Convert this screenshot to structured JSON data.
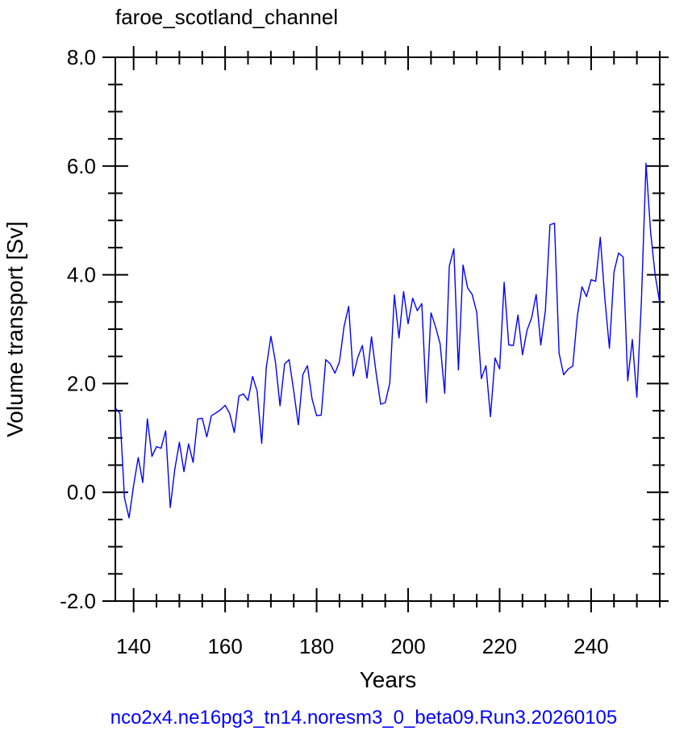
{
  "chart_data": {
    "type": "line",
    "title": "faroe_scotland_channel",
    "xlabel": "Years",
    "ylabel": "Volume transport [Sv]",
    "footer": "nco2x4.ne16pg3_tn14.noresm3_0_beta09.Run3.20260105",
    "xlim": [
      136,
      255
    ],
    "ylim": [
      -2.0,
      8.0
    ],
    "x_ticks": [
      140,
      160,
      180,
      200,
      220,
      240
    ],
    "x_tick_labels": [
      "140",
      "160",
      "180",
      "200",
      "220",
      "240"
    ],
    "y_ticks": [
      -2.0,
      0.0,
      2.0,
      4.0,
      6.0,
      8.0
    ],
    "y_tick_labels": [
      "-2.0",
      "0.0",
      "2.0",
      "4.0",
      "6.0",
      "8.0"
    ],
    "grid": false,
    "line_color": "#0000ff",
    "series": [
      {
        "x": [
          136,
          137,
          138,
          139,
          140,
          141,
          142,
          143,
          144,
          145,
          146,
          147,
          148,
          149,
          150,
          151,
          152,
          153,
          154,
          155,
          156,
          157,
          158,
          159,
          160,
          161,
          162,
          163,
          164,
          165,
          166,
          167,
          168,
          169,
          170,
          171,
          172,
          173,
          174,
          175,
          176,
          177,
          178,
          179,
          180,
          181,
          182,
          183,
          184,
          185,
          186,
          187,
          188,
          189,
          190,
          191,
          192,
          193,
          194,
          195,
          196,
          197,
          198,
          199,
          200,
          201,
          202,
          203,
          204,
          205,
          206,
          207,
          208,
          209,
          210,
          211,
          212,
          213,
          214,
          215,
          216,
          217,
          218,
          219,
          220,
          221,
          222,
          223,
          224,
          225,
          226,
          227,
          228,
          229,
          230,
          231,
          232,
          233,
          234,
          235,
          236,
          237,
          238,
          239,
          240,
          241,
          242,
          243,
          244,
          245,
          246,
          247,
          248,
          249,
          250,
          251,
          252,
          253,
          254,
          255
        ],
        "values": [
          1.55,
          1.45,
          -0.1,
          -0.47,
          0.13,
          0.64,
          0.18,
          1.35,
          0.66,
          0.84,
          0.81,
          1.13,
          -0.28,
          0.42,
          0.92,
          0.38,
          0.89,
          0.55,
          1.35,
          1.36,
          1.02,
          1.41,
          1.46,
          1.52,
          1.6,
          1.45,
          1.1,
          1.77,
          1.81,
          1.69,
          2.13,
          1.86,
          0.9,
          2.3,
          2.87,
          2.4,
          1.59,
          2.36,
          2.44,
          1.86,
          1.24,
          2.17,
          2.33,
          1.72,
          1.41,
          1.42,
          2.44,
          2.36,
          2.19,
          2.4,
          3.05,
          3.42,
          2.14,
          2.48,
          2.7,
          2.1,
          2.86,
          2.2,
          1.62,
          1.65,
          2.01,
          3.63,
          2.84,
          3.69,
          3.1,
          3.57,
          3.34,
          3.47,
          1.65,
          3.3,
          3.04,
          2.73,
          1.82,
          4.16,
          4.48,
          2.25,
          4.18,
          3.76,
          3.64,
          3.31,
          2.09,
          2.33,
          1.39,
          2.47,
          2.27,
          3.86,
          2.71,
          2.7,
          3.26,
          2.53,
          2.98,
          3.21,
          3.64,
          2.71,
          3.34,
          4.92,
          4.95,
          2.56,
          2.16,
          2.27,
          2.32,
          3.25,
          3.78,
          3.6,
          3.91,
          3.88,
          4.69,
          3.57,
          2.65,
          4.05,
          4.4,
          4.33,
          2.05,
          2.81,
          1.75,
          3.53,
          6.05,
          4.78,
          4.0,
          3.48
        ]
      }
    ]
  }
}
